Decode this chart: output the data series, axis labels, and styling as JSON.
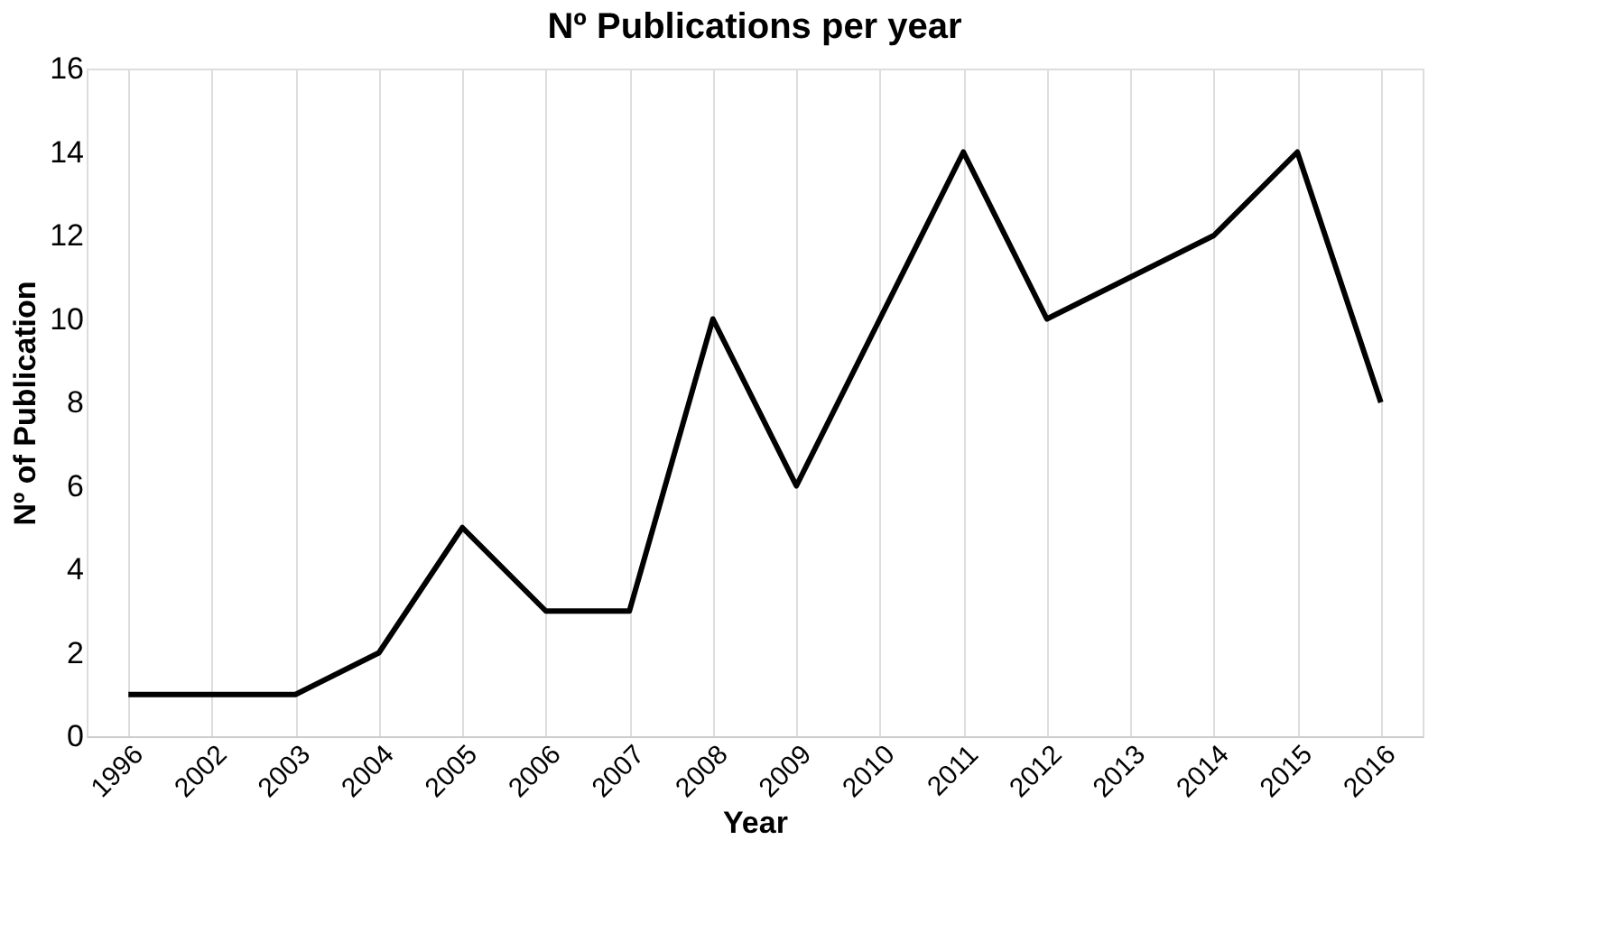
{
  "chart_data": {
    "type": "line",
    "title": "Nº Publications per year",
    "xlabel": "Year",
    "ylabel": "Nº of Publication",
    "categories": [
      "1996",
      "2002",
      "2003",
      "2004",
      "2005",
      "2006",
      "2007",
      "2008",
      "2009",
      "2010",
      "2011",
      "2012",
      "2013",
      "2014",
      "2015",
      "2016"
    ],
    "series": [
      {
        "color": "#000000",
        "values": [
          1,
          1,
          1,
          2,
          5,
          3,
          3,
          10,
          6,
          10,
          14,
          10,
          11,
          12,
          14,
          8
        ]
      }
    ],
    "ylim": [
      0,
      16
    ],
    "yticks": [
      0,
      2,
      4,
      6,
      8,
      10,
      12,
      14,
      16
    ],
    "grid": "x",
    "marker": "none",
    "line_style": "solid"
  }
}
